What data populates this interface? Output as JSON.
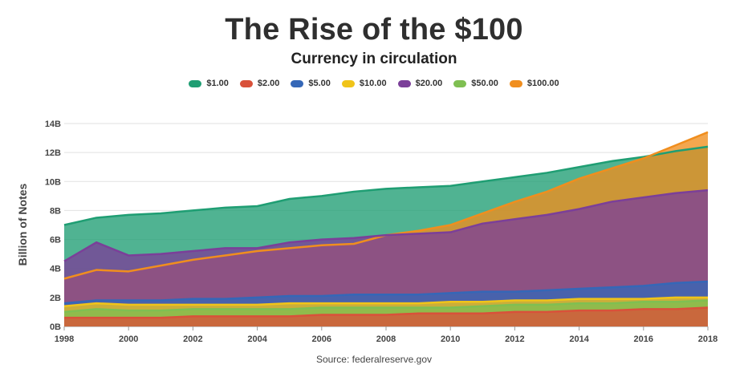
{
  "title": "The Rise of the $100",
  "subtitle": "Currency in circulation",
  "ylabel": "Billion of Notes",
  "source": "Source: federalreserve.gov",
  "chart_data": {
    "type": "area",
    "title": "The Rise of the $100",
    "subtitle": "Currency in circulation",
    "xlabel": "",
    "ylabel": "Billion of Notes",
    "x": [
      1998,
      1999,
      2000,
      2001,
      2002,
      2003,
      2004,
      2005,
      2006,
      2007,
      2008,
      2009,
      2010,
      2011,
      2012,
      2013,
      2014,
      2015,
      2016,
      2017,
      2018
    ],
    "xticks": [
      "1998",
      "2000",
      "2002",
      "2004",
      "2006",
      "2008",
      "2010",
      "2012",
      "2014",
      "2016",
      "2018"
    ],
    "yticks": [
      "0B",
      "2B",
      "4B",
      "6B",
      "8B",
      "10B",
      "12B",
      "14B"
    ],
    "ylim": [
      0,
      14
    ],
    "grid": true,
    "legend_position": "top",
    "series": [
      {
        "name": "$1.00",
        "color": "#1f9e73",
        "values": [
          7.0,
          7.5,
          7.7,
          7.8,
          8.0,
          8.2,
          8.3,
          8.8,
          9.0,
          9.3,
          9.5,
          9.6,
          9.7,
          10.0,
          10.3,
          10.6,
          11.0,
          11.4,
          11.7,
          12.1,
          12.4
        ]
      },
      {
        "name": "$2.00",
        "color": "#d9513a",
        "values": [
          0.6,
          0.6,
          0.6,
          0.6,
          0.7,
          0.7,
          0.7,
          0.7,
          0.8,
          0.8,
          0.8,
          0.9,
          0.9,
          0.9,
          1.0,
          1.0,
          1.1,
          1.1,
          1.2,
          1.2,
          1.3
        ]
      },
      {
        "name": "$5.00",
        "color": "#3567b7",
        "values": [
          1.6,
          1.8,
          1.8,
          1.8,
          1.9,
          1.9,
          2.0,
          2.1,
          2.1,
          2.2,
          2.2,
          2.2,
          2.3,
          2.4,
          2.4,
          2.5,
          2.6,
          2.7,
          2.8,
          3.0,
          3.1
        ]
      },
      {
        "name": "$10.00",
        "color": "#f0c419",
        "values": [
          1.4,
          1.6,
          1.5,
          1.5,
          1.5,
          1.5,
          1.5,
          1.6,
          1.6,
          1.6,
          1.6,
          1.6,
          1.7,
          1.7,
          1.8,
          1.8,
          1.9,
          1.9,
          1.9,
          2.0,
          2.0
        ]
      },
      {
        "name": "$20.00",
        "color": "#7b3f99",
        "values": [
          4.5,
          5.8,
          4.9,
          5.0,
          5.2,
          5.4,
          5.4,
          5.8,
          6.0,
          6.1,
          6.3,
          6.4,
          6.5,
          7.1,
          7.4,
          7.7,
          8.1,
          8.6,
          8.9,
          9.2,
          9.4
        ]
      },
      {
        "name": "$50.00",
        "color": "#7fbf52",
        "values": [
          1.0,
          1.2,
          1.1,
          1.1,
          1.2,
          1.2,
          1.2,
          1.2,
          1.3,
          1.3,
          1.3,
          1.3,
          1.3,
          1.4,
          1.5,
          1.5,
          1.6,
          1.6,
          1.7,
          1.7,
          1.8
        ]
      },
      {
        "name": "$100.00",
        "color": "#f08e1e",
        "values": [
          3.3,
          3.9,
          3.8,
          4.2,
          4.6,
          4.9,
          5.2,
          5.4,
          5.6,
          5.7,
          6.3,
          6.6,
          7.0,
          7.8,
          8.6,
          9.3,
          10.2,
          10.9,
          11.6,
          12.5,
          13.4
        ]
      }
    ]
  }
}
